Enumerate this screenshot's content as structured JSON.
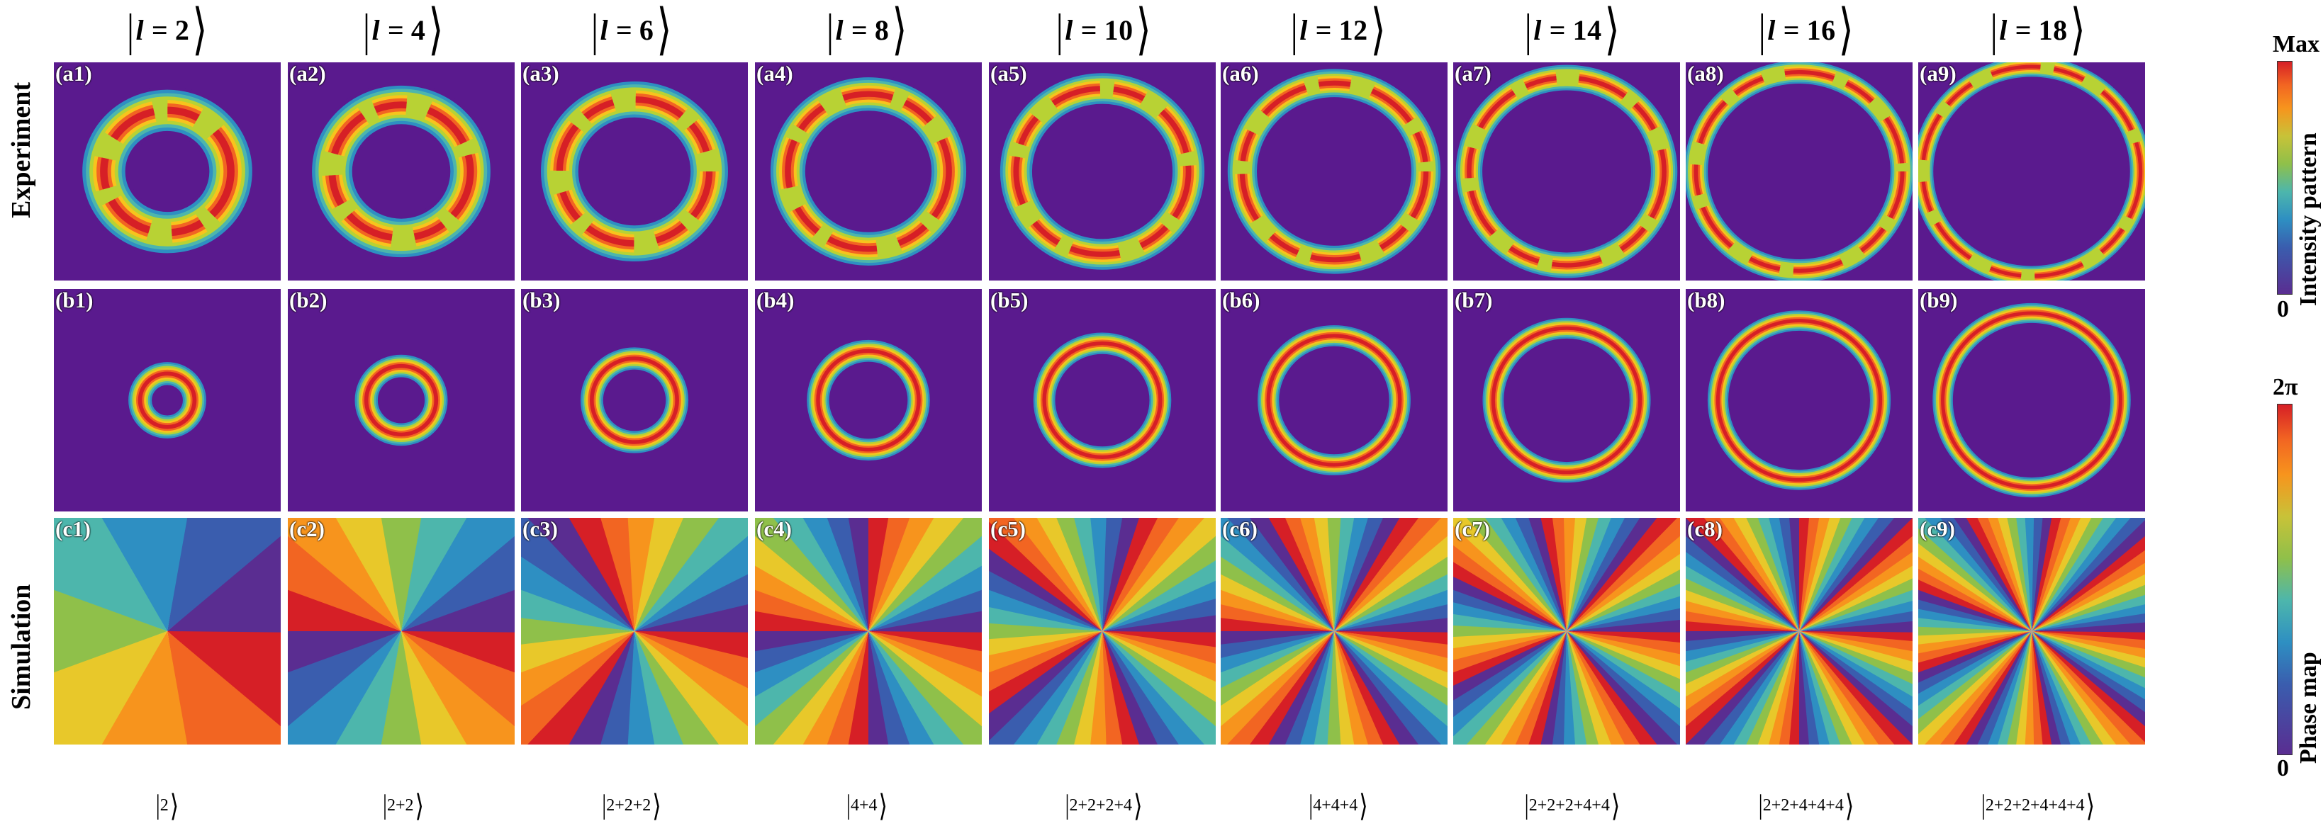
{
  "columns": [
    {
      "n": "2",
      "a": "(a1)",
      "b": "(b1)",
      "c": "(c1)",
      "bottom": "2"
    },
    {
      "n": "4",
      "a": "(a2)",
      "b": "(b2)",
      "c": "(c2)",
      "bottom": "2+2"
    },
    {
      "n": "6",
      "a": "(a3)",
      "b": "(b3)",
      "c": "(c3)",
      "bottom": "2+2+2"
    },
    {
      "n": "8",
      "a": "(a4)",
      "b": "(b4)",
      "c": "(c4)",
      "bottom": "4+4"
    },
    {
      "n": "10",
      "a": "(a5)",
      "b": "(b5)",
      "c": "(c5)",
      "bottom": "2+2+2+4"
    },
    {
      "n": "12",
      "a": "(a6)",
      "b": "(b6)",
      "c": "(c6)",
      "bottom": "4+4+4"
    },
    {
      "n": "14",
      "a": "(a7)",
      "b": "(b7)",
      "c": "(c7)",
      "bottom": "2+2+2+4+4"
    },
    {
      "n": "16",
      "a": "(a8)",
      "b": "(b8)",
      "c": "(c8)",
      "bottom": "2+2+4+4+4"
    },
    {
      "n": "18",
      "a": "(a9)",
      "b": "(b9)",
      "c": "(c9)",
      "bottom": "2+2+2+4+4+4"
    }
  ],
  "header_prefix": "l =",
  "rows": {
    "experiment": "Experiment",
    "simulation": "Simulation"
  },
  "colorbar_intensity": {
    "top": "Max",
    "bottom": "0",
    "title": "Intensity pattern"
  },
  "colorbar_phase": {
    "top": "2π",
    "bottom": "0",
    "title": "Phase map"
  },
  "colors": {
    "background": "#5a1a8e",
    "ring": "#e8281e"
  }
}
